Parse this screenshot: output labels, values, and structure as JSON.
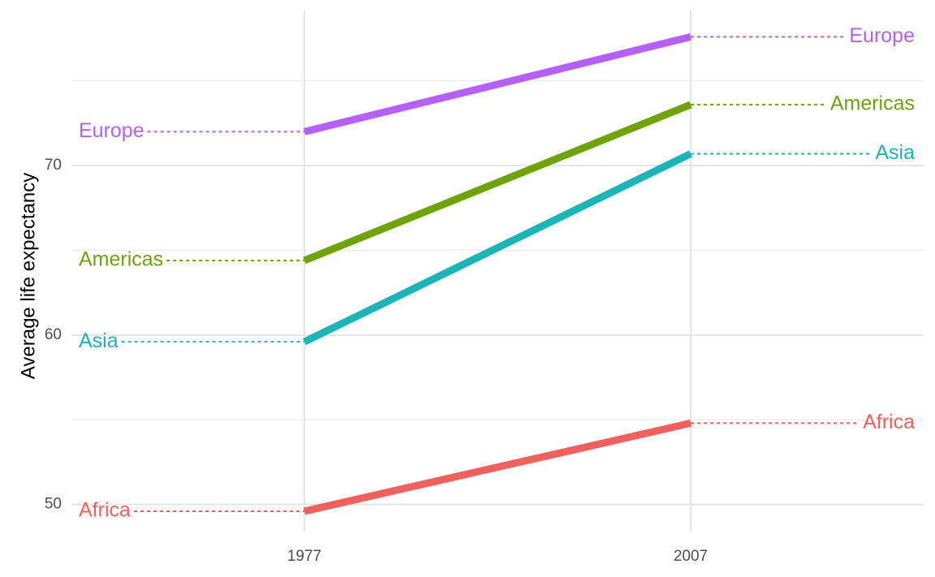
{
  "chart_data": {
    "type": "line",
    "y_axis_label": "Average life expectancy",
    "categories": [
      "1977",
      "2007"
    ],
    "series": [
      {
        "name": "Africa",
        "color": "#f0605c",
        "values": [
          49.6,
          54.8
        ]
      },
      {
        "name": "Americas",
        "color": "#6fa308",
        "values": [
          64.4,
          73.6
        ]
      },
      {
        "name": "Asia",
        "color": "#1bb5b8",
        "values": [
          59.6,
          70.7
        ]
      },
      {
        "name": "Europe",
        "color": "#b660fb",
        "values": [
          72.0,
          77.6
        ]
      }
    ],
    "ylim": [
      48.4,
      79.2
    ],
    "yticks": [
      50,
      60,
      70
    ],
    "y_minor_ticks": [
      55,
      65,
      75
    ],
    "grid": true
  }
}
